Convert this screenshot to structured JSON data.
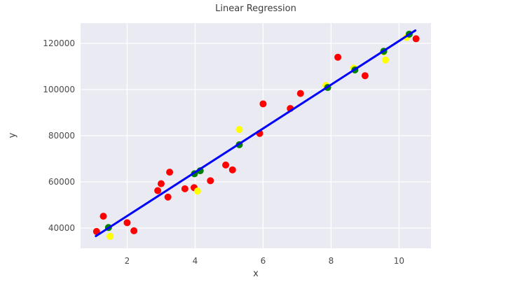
{
  "figure": {
    "background": "#ffffff"
  },
  "chart_data": {
    "type": "scatter",
    "title": "Linear Regression",
    "xlabel": "x",
    "ylabel": "y",
    "xlim": [
      0.63,
      10.94
    ],
    "ylim": [
      31200,
      128800
    ],
    "xticks": [
      2,
      4,
      6,
      8,
      10
    ],
    "yticks": [
      40000,
      60000,
      80000,
      100000,
      120000
    ],
    "grid": true,
    "legend": "none",
    "plot_background": "#EAEAF2",
    "grid_color": "#FFFFFF",
    "tick_text_color": "#4a4a4a",
    "marker_radius": 5,
    "series": [
      {
        "name": "data-points-red",
        "type": "scatter",
        "color": "#FF0000",
        "points": [
          [
            1.1,
            38500
          ],
          [
            1.3,
            45100
          ],
          [
            2.0,
            42300
          ],
          [
            2.2,
            38800
          ],
          [
            2.9,
            56200
          ],
          [
            3.0,
            59200
          ],
          [
            3.2,
            53400
          ],
          [
            3.25,
            64200
          ],
          [
            3.7,
            57000
          ],
          [
            3.97,
            57500
          ],
          [
            4.45,
            60500
          ],
          [
            4.9,
            67300
          ],
          [
            5.1,
            65200
          ],
          [
            5.9,
            81000
          ],
          [
            6.0,
            93800
          ],
          [
            6.8,
            91800
          ],
          [
            7.1,
            98300
          ],
          [
            8.2,
            114000
          ],
          [
            9.0,
            106000
          ],
          [
            10.5,
            122000
          ]
        ]
      },
      {
        "name": "predicted-points-yellow",
        "type": "scatter",
        "color": "#FFFF00",
        "points": [
          [
            1.5,
            36400
          ],
          [
            4.07,
            56000
          ],
          [
            5.3,
            82700
          ],
          [
            7.85,
            101800
          ],
          [
            8.67,
            109300
          ],
          [
            9.55,
            116300
          ],
          [
            9.6,
            112800
          ],
          [
            10.22,
            122600
          ]
        ]
      },
      {
        "name": "predicted-points-green",
        "type": "scatter",
        "color": "#008000",
        "points": [
          [
            1.45,
            40200
          ],
          [
            3.98,
            63500
          ],
          [
            4.15,
            64800
          ],
          [
            5.3,
            76100
          ],
          [
            7.9,
            100900
          ],
          [
            8.7,
            108500
          ],
          [
            9.55,
            116600
          ],
          [
            10.3,
            124000
          ]
        ]
      }
    ],
    "regression_line": {
      "name": "regression-line",
      "color": "#0000FF",
      "width": 3,
      "from": [
        1.08,
        36500
      ],
      "to": [
        10.48,
        125600
      ]
    }
  }
}
